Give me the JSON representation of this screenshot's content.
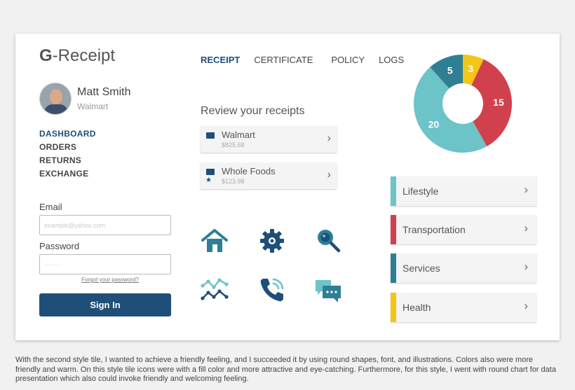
{
  "logo": {
    "g": "G",
    "rest": "-Receipt"
  },
  "profile": {
    "name": "Matt Smith",
    "company": "Walmart"
  },
  "side_nav": [
    "DASHBOARD",
    "ORDERS",
    "RETURNS",
    "EXCHANGE"
  ],
  "login": {
    "email_label": "Email",
    "email_placeholder": "example@yahoo.com",
    "password_label": "Password",
    "password_placeholder": "········",
    "forgot": "Forgot your password?",
    "signin": "Sign In"
  },
  "top_nav": [
    "RECEIPT",
    "CERTIFICATE",
    "POLICY",
    "LOGS"
  ],
  "review_title": "Review your receipts",
  "receipts": [
    {
      "name": "Walmart",
      "amount": "$825.68"
    },
    {
      "name": "Whole Foods",
      "amount": "$123.98"
    }
  ],
  "categories": [
    {
      "label": "Lifestyle",
      "color": "#6cc3c8"
    },
    {
      "label": "Transportation",
      "color": "#d1414d"
    },
    {
      "label": "Services",
      "color": "#2e7f94"
    },
    {
      "label": "Health",
      "color": "#f5c518"
    }
  ],
  "chart_data": {
    "type": "pie",
    "slices": [
      {
        "value": 3,
        "color": "#f5c518"
      },
      {
        "value": 15,
        "color": "#d1414d"
      },
      {
        "value": 20,
        "color": "#6cc3c8"
      },
      {
        "value": 5,
        "color": "#2e7f94"
      }
    ]
  },
  "icon_color": "#2e7f94",
  "icon_dark": "#1f4e79",
  "caption": "With the second style tile, I wanted to achieve a friendly feeling, and I succeeded it by using round shapes, font, and illustrations. Colors also were more friendly and warm. On this style tile icons were with a fill color and more attractive and eye-catching. Furthermore, for this style, I went with round chart for data presentation which also could invoke friendly and welcoming feeling."
}
